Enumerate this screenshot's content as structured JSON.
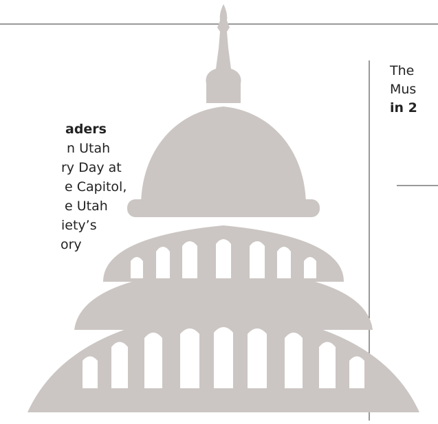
{
  "left_text": {
    "lines": [
      {
        "text": "aders",
        "bold": true
      },
      {
        "text": "n Utah",
        "bold": false
      },
      {
        "text": "ry Day at",
        "bold": false
      },
      {
        "text": "e Capitol,",
        "bold": false
      },
      {
        "text": "e Utah",
        "bold": false
      },
      {
        "text": "iety’s",
        "bold": false
      },
      {
        "text": "ory",
        "bold": false
      }
    ]
  },
  "right_text": {
    "lines": [
      {
        "text": "The",
        "bold": false
      },
      {
        "text": "Mus",
        "bold": false
      },
      {
        "text": "in 2",
        "bold": true
      }
    ]
  }
}
